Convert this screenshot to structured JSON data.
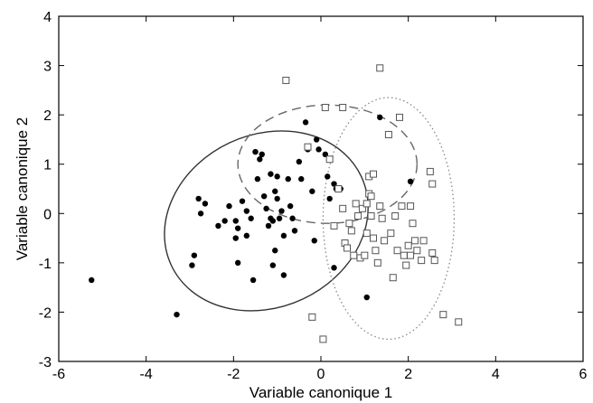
{
  "chart_data": {
    "type": "scatter",
    "title": "",
    "xlabel": "Variable canonique 1",
    "ylabel": "Variable canonique 2",
    "xlim": [
      -6,
      6
    ],
    "ylim": [
      -3,
      4
    ],
    "xticks": [
      -6,
      -4,
      -2,
      0,
      2,
      4,
      6
    ],
    "yticks": [
      -3,
      -2,
      -1,
      0,
      1,
      2,
      3,
      4
    ],
    "grid": false,
    "legend": "none",
    "series": [
      {
        "marker": "filled-dot",
        "color": "#000000",
        "points": [
          [
            -5.25,
            -1.35
          ],
          [
            -3.3,
            -2.05
          ],
          [
            -2.9,
            -0.85
          ],
          [
            -2.95,
            -1.05
          ],
          [
            -2.8,
            0.3
          ],
          [
            -2.75,
            0.0
          ],
          [
            -2.65,
            0.2
          ],
          [
            -2.35,
            -0.25
          ],
          [
            -2.2,
            -0.15
          ],
          [
            -2.1,
            0.15
          ],
          [
            -1.95,
            -0.15
          ],
          [
            -1.95,
            -0.5
          ],
          [
            -1.9,
            -0.3
          ],
          [
            -1.9,
            -1.0
          ],
          [
            -1.8,
            0.25
          ],
          [
            -1.7,
            0.05
          ],
          [
            -1.7,
            -0.45
          ],
          [
            -1.6,
            -0.1
          ],
          [
            -1.55,
            -1.35
          ],
          [
            -1.5,
            1.25
          ],
          [
            -1.45,
            0.7
          ],
          [
            -1.4,
            1.1
          ],
          [
            -1.35,
            1.2
          ],
          [
            -1.3,
            0.35
          ],
          [
            -1.25,
            0.1
          ],
          [
            -1.2,
            -0.25
          ],
          [
            -1.15,
            -0.1
          ],
          [
            -1.15,
            0.8
          ],
          [
            -1.1,
            -0.15
          ],
          [
            -1.1,
            -1.05
          ],
          [
            -1.05,
            0.45
          ],
          [
            -1.05,
            -0.75
          ],
          [
            -1.0,
            0.75
          ],
          [
            -1.0,
            0.3
          ],
          [
            -0.95,
            -0.1
          ],
          [
            -0.9,
            0.05
          ],
          [
            -0.85,
            -0.45
          ],
          [
            -0.85,
            -1.25
          ],
          [
            -0.75,
            0.7
          ],
          [
            -0.7,
            0.15
          ],
          [
            -0.65,
            -0.1
          ],
          [
            -0.6,
            -0.35
          ],
          [
            -0.5,
            1.05
          ],
          [
            -0.45,
            0.7
          ],
          [
            -0.35,
            1.85
          ],
          [
            -0.3,
            1.3
          ],
          [
            -0.2,
            0.45
          ],
          [
            -0.15,
            -0.55
          ],
          [
            -0.1,
            1.5
          ],
          [
            -0.05,
            1.3
          ],
          [
            0.1,
            1.2
          ],
          [
            0.15,
            0.75
          ],
          [
            0.2,
            0.3
          ],
          [
            0.3,
            0.6
          ],
          [
            0.35,
            0.5
          ],
          [
            0.45,
            0.5
          ],
          [
            0.3,
            -1.1
          ],
          [
            1.05,
            -1.7
          ],
          [
            1.35,
            1.95
          ],
          [
            2.05,
            0.65
          ]
        ]
      },
      {
        "marker": "open-square",
        "color": "#555555",
        "points": [
          [
            -0.8,
            2.7
          ],
          [
            -0.3,
            1.35
          ],
          [
            -0.2,
            -2.1
          ],
          [
            0.1,
            2.15
          ],
          [
            0.2,
            1.1
          ],
          [
            0.5,
            2.15
          ],
          [
            0.4,
            0.5
          ],
          [
            0.5,
            0.1
          ],
          [
            0.55,
            -0.6
          ],
          [
            0.6,
            -0.7
          ],
          [
            0.65,
            -0.2
          ],
          [
            0.7,
            -0.35
          ],
          [
            0.75,
            -0.85
          ],
          [
            0.8,
            0.2
          ],
          [
            0.85,
            -0.05
          ],
          [
            0.9,
            -0.9
          ],
          [
            0.95,
            0.1
          ],
          [
            1.0,
            -0.85
          ],
          [
            1.05,
            0.2
          ],
          [
            1.05,
            -0.4
          ],
          [
            1.1,
            0.75
          ],
          [
            1.1,
            0.4
          ],
          [
            1.15,
            0.35
          ],
          [
            1.15,
            -0.05
          ],
          [
            1.2,
            0.8
          ],
          [
            1.2,
            -0.5
          ],
          [
            1.25,
            -0.75
          ],
          [
            1.3,
            -1.0
          ],
          [
            1.35,
            0.15
          ],
          [
            1.4,
            -0.1
          ],
          [
            1.45,
            -0.55
          ],
          [
            1.55,
            1.6
          ],
          [
            1.6,
            -0.4
          ],
          [
            1.65,
            -1.3
          ],
          [
            1.7,
            -0.05
          ],
          [
            1.75,
            -0.75
          ],
          [
            1.8,
            1.95
          ],
          [
            1.85,
            0.15
          ],
          [
            1.9,
            -0.85
          ],
          [
            1.95,
            -1.05
          ],
          [
            2.0,
            -0.65
          ],
          [
            2.05,
            0.15
          ],
          [
            2.05,
            -0.85
          ],
          [
            2.1,
            -0.2
          ],
          [
            2.15,
            -0.55
          ],
          [
            2.2,
            -0.75
          ],
          [
            2.3,
            -0.95
          ],
          [
            2.35,
            -0.55
          ],
          [
            2.5,
            0.85
          ],
          [
            2.55,
            0.6
          ],
          [
            2.6,
            -0.95
          ],
          [
            2.8,
            -2.05
          ],
          [
            3.15,
            -2.2
          ],
          [
            1.35,
            2.95
          ],
          [
            0.05,
            -2.55
          ],
          [
            0.3,
            -0.25
          ],
          [
            2.55,
            -0.8
          ]
        ]
      }
    ],
    "ellipses": [
      {
        "style": "solid",
        "color": "#333333",
        "cx": -1.25,
        "cy": -0.15,
        "rx": 2.4,
        "ry": 1.75,
        "angle": 25
      },
      {
        "style": "dashed",
        "color": "#666666",
        "cx": 0.15,
        "cy": 1.0,
        "rx": 2.05,
        "ry": 1.2,
        "angle": 0
      },
      {
        "style": "dotted",
        "color": "#888888",
        "cx": 1.55,
        "cy": -0.1,
        "rx": 1.5,
        "ry": 2.45,
        "angle": 0
      }
    ]
  }
}
